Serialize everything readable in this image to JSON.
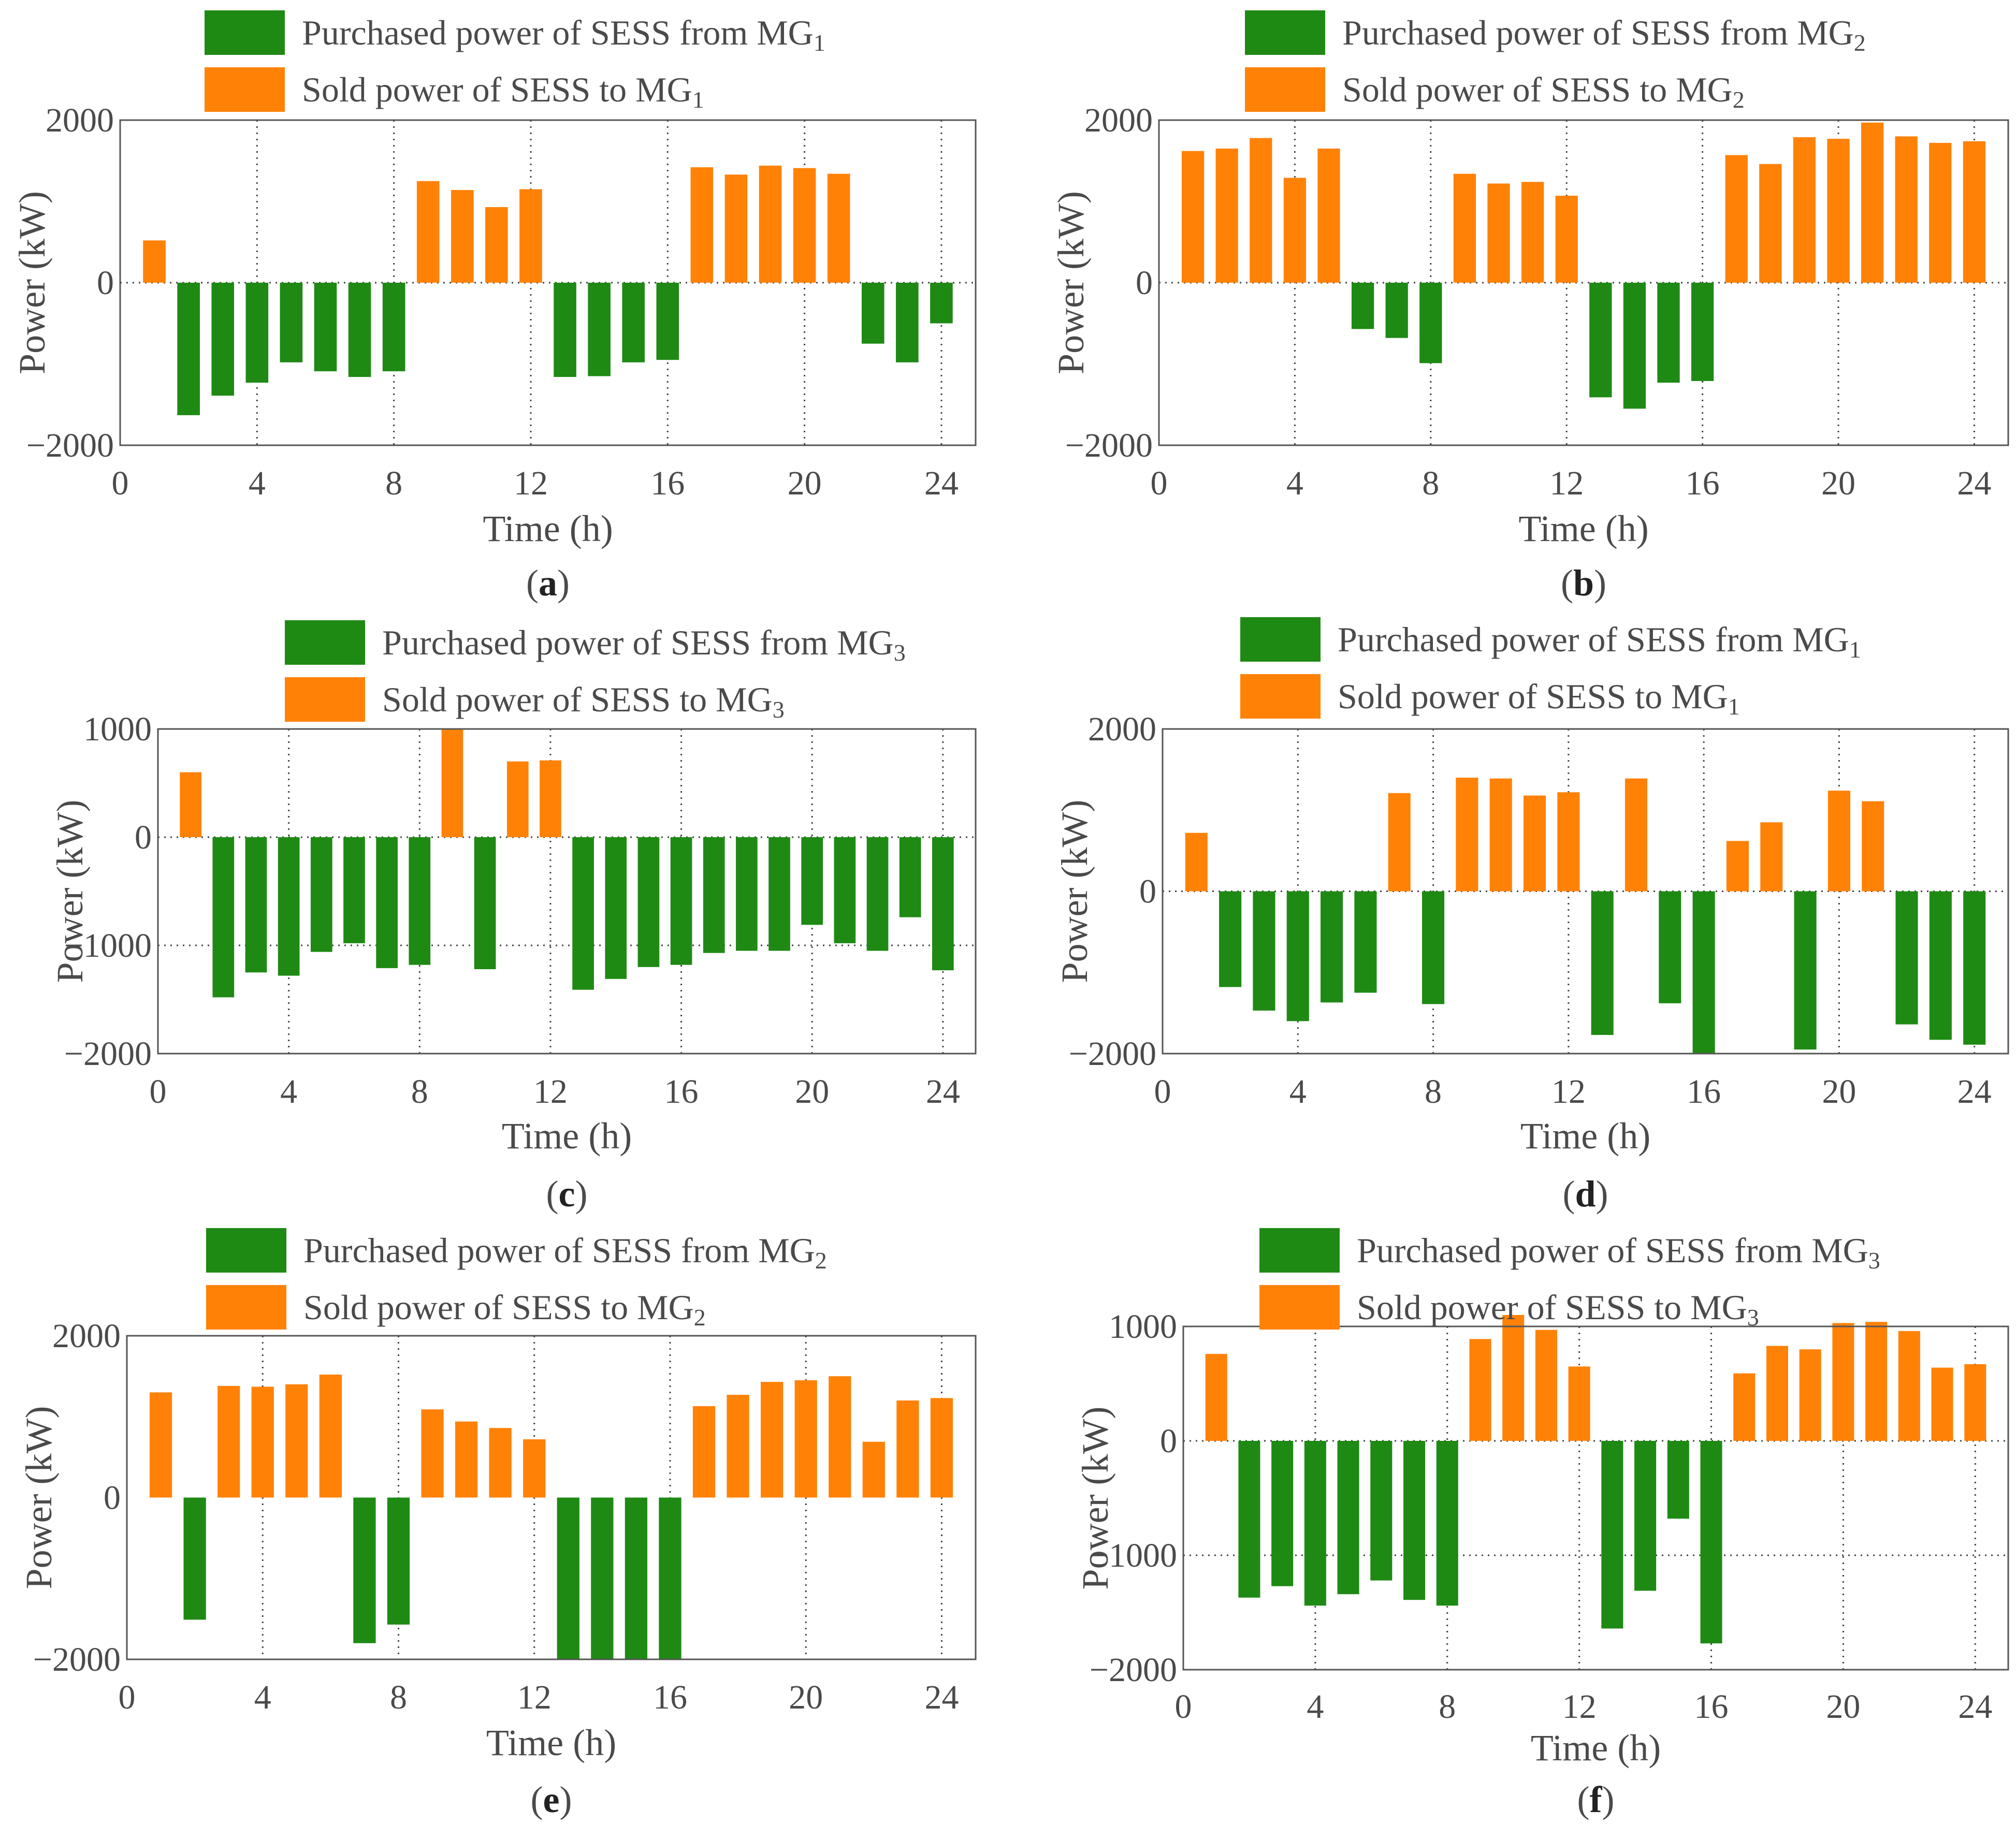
{
  "colors": {
    "purchased": "#1e8a14",
    "sold": "#ff8207",
    "axis": "#555555",
    "grid": "#444444",
    "text": "#4a4a4a"
  },
  "chart_data": [
    {
      "type": "bar",
      "panel_label": "a",
      "legend": [
        {
          "key": "purchased",
          "text": "Purchased power of SESS from MG",
          "sub": "1"
        },
        {
          "key": "sold",
          "text": "Sold power of SESS to MG",
          "sub": "1"
        }
      ],
      "xlabel": "Time (h)",
      "ylabel": "Power (kW)",
      "xlim": [
        0,
        25
      ],
      "ylim": [
        -2000,
        2000
      ],
      "xticks": [
        0,
        4,
        8,
        12,
        16,
        20,
        24
      ],
      "yticks": [
        -2000,
        0,
        2000
      ],
      "ygrid": [
        0
      ],
      "series": [
        {
          "name": "Purchased power of SESS from MG1",
          "key": "purchased",
          "values": [
            0,
            -1630,
            -1390,
            -1230,
            -980,
            -1090,
            -1160,
            -1090,
            0,
            0,
            0,
            0,
            -1160,
            -1150,
            -980,
            -950,
            0,
            0,
            0,
            0,
            0,
            -750,
            -980,
            -500
          ]
        },
        {
          "name": "Sold power of SESS to MG1",
          "key": "sold",
          "values": [
            520,
            0,
            0,
            0,
            0,
            0,
            0,
            0,
            1250,
            1140,
            930,
            1150,
            0,
            0,
            0,
            0,
            1420,
            1330,
            1440,
            1410,
            1340,
            0,
            0,
            0
          ]
        }
      ]
    },
    {
      "type": "bar",
      "panel_label": "b",
      "legend": [
        {
          "key": "purchased",
          "text": "Purchased power of SESS from MG",
          "sub": "2"
        },
        {
          "key": "sold",
          "text": "Sold power of SESS to MG",
          "sub": "2"
        }
      ],
      "xlabel": "Time (h)",
      "ylabel": "Power (kW)",
      "xlim": [
        0,
        25
      ],
      "ylim": [
        -2000,
        2000
      ],
      "xticks": [
        0,
        4,
        8,
        12,
        16,
        20,
        24
      ],
      "yticks": [
        -2000,
        0,
        2000
      ],
      "ygrid": [
        0
      ],
      "series": [
        {
          "name": "Purchased power of SESS from MG2",
          "key": "purchased",
          "values": [
            0,
            0,
            0,
            0,
            0,
            -570,
            -680,
            -990,
            0,
            0,
            0,
            0,
            -1410,
            -1550,
            -1230,
            -1210,
            0,
            0,
            0,
            0,
            0,
            0,
            0,
            0
          ]
        },
        {
          "name": "Sold power of SESS to MG2",
          "key": "sold",
          "values": [
            1620,
            1650,
            1780,
            1290,
            1650,
            0,
            0,
            0,
            1340,
            1220,
            1240,
            1070,
            0,
            0,
            0,
            0,
            1570,
            1460,
            1790,
            1770,
            1970,
            1800,
            1720,
            1740
          ]
        }
      ]
    },
    {
      "type": "bar",
      "panel_label": "c",
      "legend": [
        {
          "key": "purchased",
          "text": "Purchased power of SESS from MG",
          "sub": "3"
        },
        {
          "key": "sold",
          "text": "Sold power of SESS to MG",
          "sub": "3"
        }
      ],
      "xlabel": "Time (h)",
      "ylabel": "Power (kW)",
      "xlim": [
        0,
        25
      ],
      "ylim": [
        -2000,
        1000
      ],
      "xticks": [
        0,
        4,
        8,
        12,
        16,
        20,
        24
      ],
      "yticks": [
        -2000,
        -1000,
        0,
        1000
      ],
      "ygrid": [
        0,
        -1000
      ],
      "series": [
        {
          "name": "Purchased power of SESS from MG3",
          "key": "purchased",
          "values": [
            0,
            -1480,
            -1250,
            -1280,
            -1060,
            -980,
            -1210,
            -1180,
            0,
            -1220,
            0,
            0,
            -1410,
            -1310,
            -1200,
            -1180,
            -1070,
            -1050,
            -1050,
            -810,
            -980,
            -1050,
            -740,
            -1230
          ]
        },
        {
          "name": "Sold power of SESS to MG3",
          "key": "sold",
          "values": [
            600,
            0,
            0,
            0,
            0,
            0,
            0,
            0,
            1000,
            0,
            700,
            710,
            0,
            0,
            0,
            0,
            0,
            0,
            0,
            0,
            0,
            0,
            0,
            0
          ]
        }
      ]
    },
    {
      "type": "bar",
      "panel_label": "d",
      "legend": [
        {
          "key": "purchased",
          "text": "Purchased power of SESS from MG",
          "sub": "1"
        },
        {
          "key": "sold",
          "text": "Sold power of SESS to MG",
          "sub": "1"
        }
      ],
      "xlabel": "Time (h)",
      "ylabel": "Power (kW)",
      "xlim": [
        0,
        25
      ],
      "ylim": [
        -2000,
        2000
      ],
      "xticks": [
        0,
        4,
        8,
        12,
        16,
        20,
        24
      ],
      "yticks": [
        -2000,
        0,
        2000
      ],
      "ygrid": [
        0
      ],
      "series": [
        {
          "name": "Purchased power of SESS from MG1",
          "key": "purchased",
          "values": [
            0,
            -1180,
            -1470,
            -1600,
            -1370,
            -1250,
            0,
            -1390,
            0,
            0,
            0,
            0,
            -1770,
            0,
            -1380,
            -2000,
            0,
            0,
            -1950,
            0,
            0,
            -1640,
            -1830,
            -1890
          ]
        },
        {
          "name": "Sold power of SESS to MG1",
          "key": "sold",
          "values": [
            720,
            0,
            0,
            0,
            0,
            0,
            1210,
            0,
            1400,
            1390,
            1180,
            1220,
            0,
            1390,
            0,
            0,
            620,
            850,
            0,
            1240,
            1110,
            0,
            0,
            0
          ]
        }
      ]
    },
    {
      "type": "bar",
      "panel_label": "e",
      "legend": [
        {
          "key": "purchased",
          "text": "Purchased power of SESS from MG",
          "sub": "2"
        },
        {
          "key": "sold",
          "text": "Sold power of SESS to MG",
          "sub": "2"
        }
      ],
      "xlabel": "Time (h)",
      "ylabel": "Power (kW)",
      "xlim": [
        0,
        25
      ],
      "ylim": [
        -2000,
        2000
      ],
      "xticks": [
        0,
        4,
        8,
        12,
        16,
        20,
        24
      ],
      "yticks": [
        -2000,
        0,
        2000
      ],
      "ygrid": [],
      "series": [
        {
          "name": "Purchased power of SESS from MG2",
          "key": "purchased",
          "values": [
            0,
            -1510,
            0,
            0,
            0,
            0,
            -1800,
            -1570,
            0,
            0,
            0,
            0,
            -2000,
            -2000,
            -2000,
            -2000,
            0,
            0,
            0,
            0,
            0,
            0,
            0,
            0
          ]
        },
        {
          "name": "Sold power of SESS to MG2",
          "key": "sold",
          "values": [
            1300,
            0,
            1380,
            1370,
            1400,
            1520,
            0,
            0,
            1090,
            940,
            860,
            720,
            0,
            0,
            0,
            0,
            1130,
            1270,
            1430,
            1450,
            1500,
            690,
            1200,
            1230
          ]
        }
      ]
    },
    {
      "type": "bar",
      "panel_label": "f",
      "legend": [
        {
          "key": "purchased",
          "text": "Purchased power of SESS from MG",
          "sub": "3"
        },
        {
          "key": "sold",
          "text": "Sold power of SESS to MG",
          "sub": "3"
        }
      ],
      "xlabel": "Time (h)",
      "ylabel": "Power (kW)",
      "xlim": [
        0,
        25
      ],
      "ylim": [
        -2000,
        1000
      ],
      "xticks": [
        0,
        4,
        8,
        12,
        16,
        20,
        24
      ],
      "yticks": [
        -2000,
        -1000,
        0,
        1000
      ],
      "ygrid": [
        0,
        -1000,
        1000
      ],
      "series": [
        {
          "name": "Purchased power of SESS from MG3",
          "key": "purchased",
          "values": [
            0,
            -1370,
            -1270,
            -1440,
            -1340,
            -1220,
            -1390,
            -1440,
            0,
            0,
            0,
            0,
            -1640,
            -1310,
            -680,
            -1770,
            0,
            0,
            0,
            0,
            0,
            0,
            0,
            0
          ]
        },
        {
          "name": "Sold power of SESS to MG3",
          "key": "sold",
          "values": [
            760,
            0,
            0,
            0,
            0,
            0,
            0,
            0,
            890,
            1100,
            970,
            650,
            0,
            0,
            0,
            0,
            590,
            830,
            800,
            1030,
            1040,
            960,
            640,
            670
          ]
        }
      ]
    }
  ]
}
